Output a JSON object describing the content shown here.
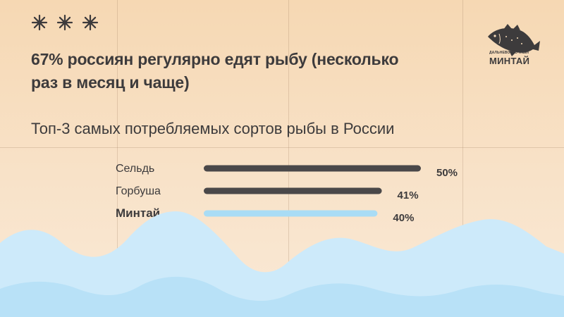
{
  "header": {
    "headline": "67% россиян регулярно едят рыбу (несколько раз в месяц и чаще)",
    "subtitle": "Топ-3 самых потребляемых сортов рыбы в России",
    "decorations": [
      "snowflake-icon",
      "snowflake-icon",
      "snowflake-icon"
    ]
  },
  "logo": {
    "icon": "fish-icon",
    "small_text": "ДАЛЬНЕВОСТОЧНЫЙ",
    "big_text": "МИНТАЙ"
  },
  "colors": {
    "background": "#f7dcbc",
    "text": "#3d3b3c",
    "bar_default": "#4a4849",
    "bar_highlight": "#a9dcf5",
    "wave_light": "#cdeafa",
    "wave_mid": "#b8e1f7"
  },
  "chart_data": {
    "type": "bar",
    "orientation": "horizontal",
    "title": "Топ-3 самых потребляемых сортов рыбы в России",
    "categories": [
      "Сельдь",
      "Горбуша",
      "Минтай"
    ],
    "values": [
      50,
      41,
      40
    ],
    "value_labels": [
      "50%",
      "41%",
      "40%"
    ],
    "highlighted": "Минтай",
    "unit": "%",
    "xlim": [
      0,
      50
    ],
    "grid": false,
    "legend": "none"
  }
}
